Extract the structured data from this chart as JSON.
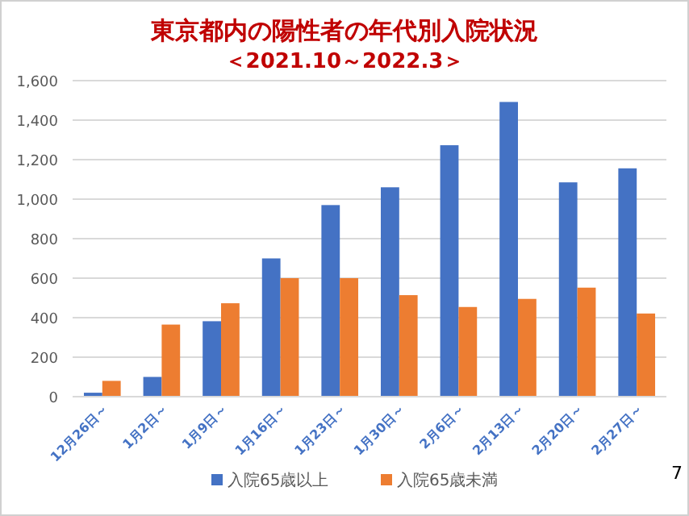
{
  "chart_data": {
    "type": "bar",
    "title": "東京都内の陽性者の年代別入院状況",
    "subtitle": "＜2021.10～2022.3＞",
    "categories": [
      "12月26日～",
      "1月2日～",
      "1月9日～",
      "1月16日～",
      "1月23日～",
      "1月30日～",
      "2月6日～",
      "2月13日～",
      "2月20日～",
      "2月27日～"
    ],
    "series": [
      {
        "name": "入院65歳以上",
        "color": "#4472c4",
        "values": [
          20,
          100,
          382,
          700,
          970,
          1060,
          1273,
          1492,
          1085,
          1156
        ]
      },
      {
        "name": "入院65歳未満",
        "color": "#ed7d31",
        "values": [
          80,
          365,
          473,
          600,
          600,
          514,
          454,
          495,
          552,
          421
        ]
      }
    ],
    "ylim": [
      0,
      1600
    ],
    "yticks": [
      {
        "value": 0,
        "label": "0"
      },
      {
        "value": 200,
        "label": "200"
      },
      {
        "value": 400,
        "label": "400"
      },
      {
        "value": 600,
        "label": "600"
      },
      {
        "value": 800,
        "label": "800"
      },
      {
        "value": 1000,
        "label": "1,000"
      },
      {
        "value": 1200,
        "label": "1,200"
      },
      {
        "value": 1400,
        "label": "1,400"
      },
      {
        "value": 1600,
        "label": "1,600"
      }
    ],
    "grid": "y",
    "legend": "bottom",
    "annotations": [
      "7"
    ]
  }
}
